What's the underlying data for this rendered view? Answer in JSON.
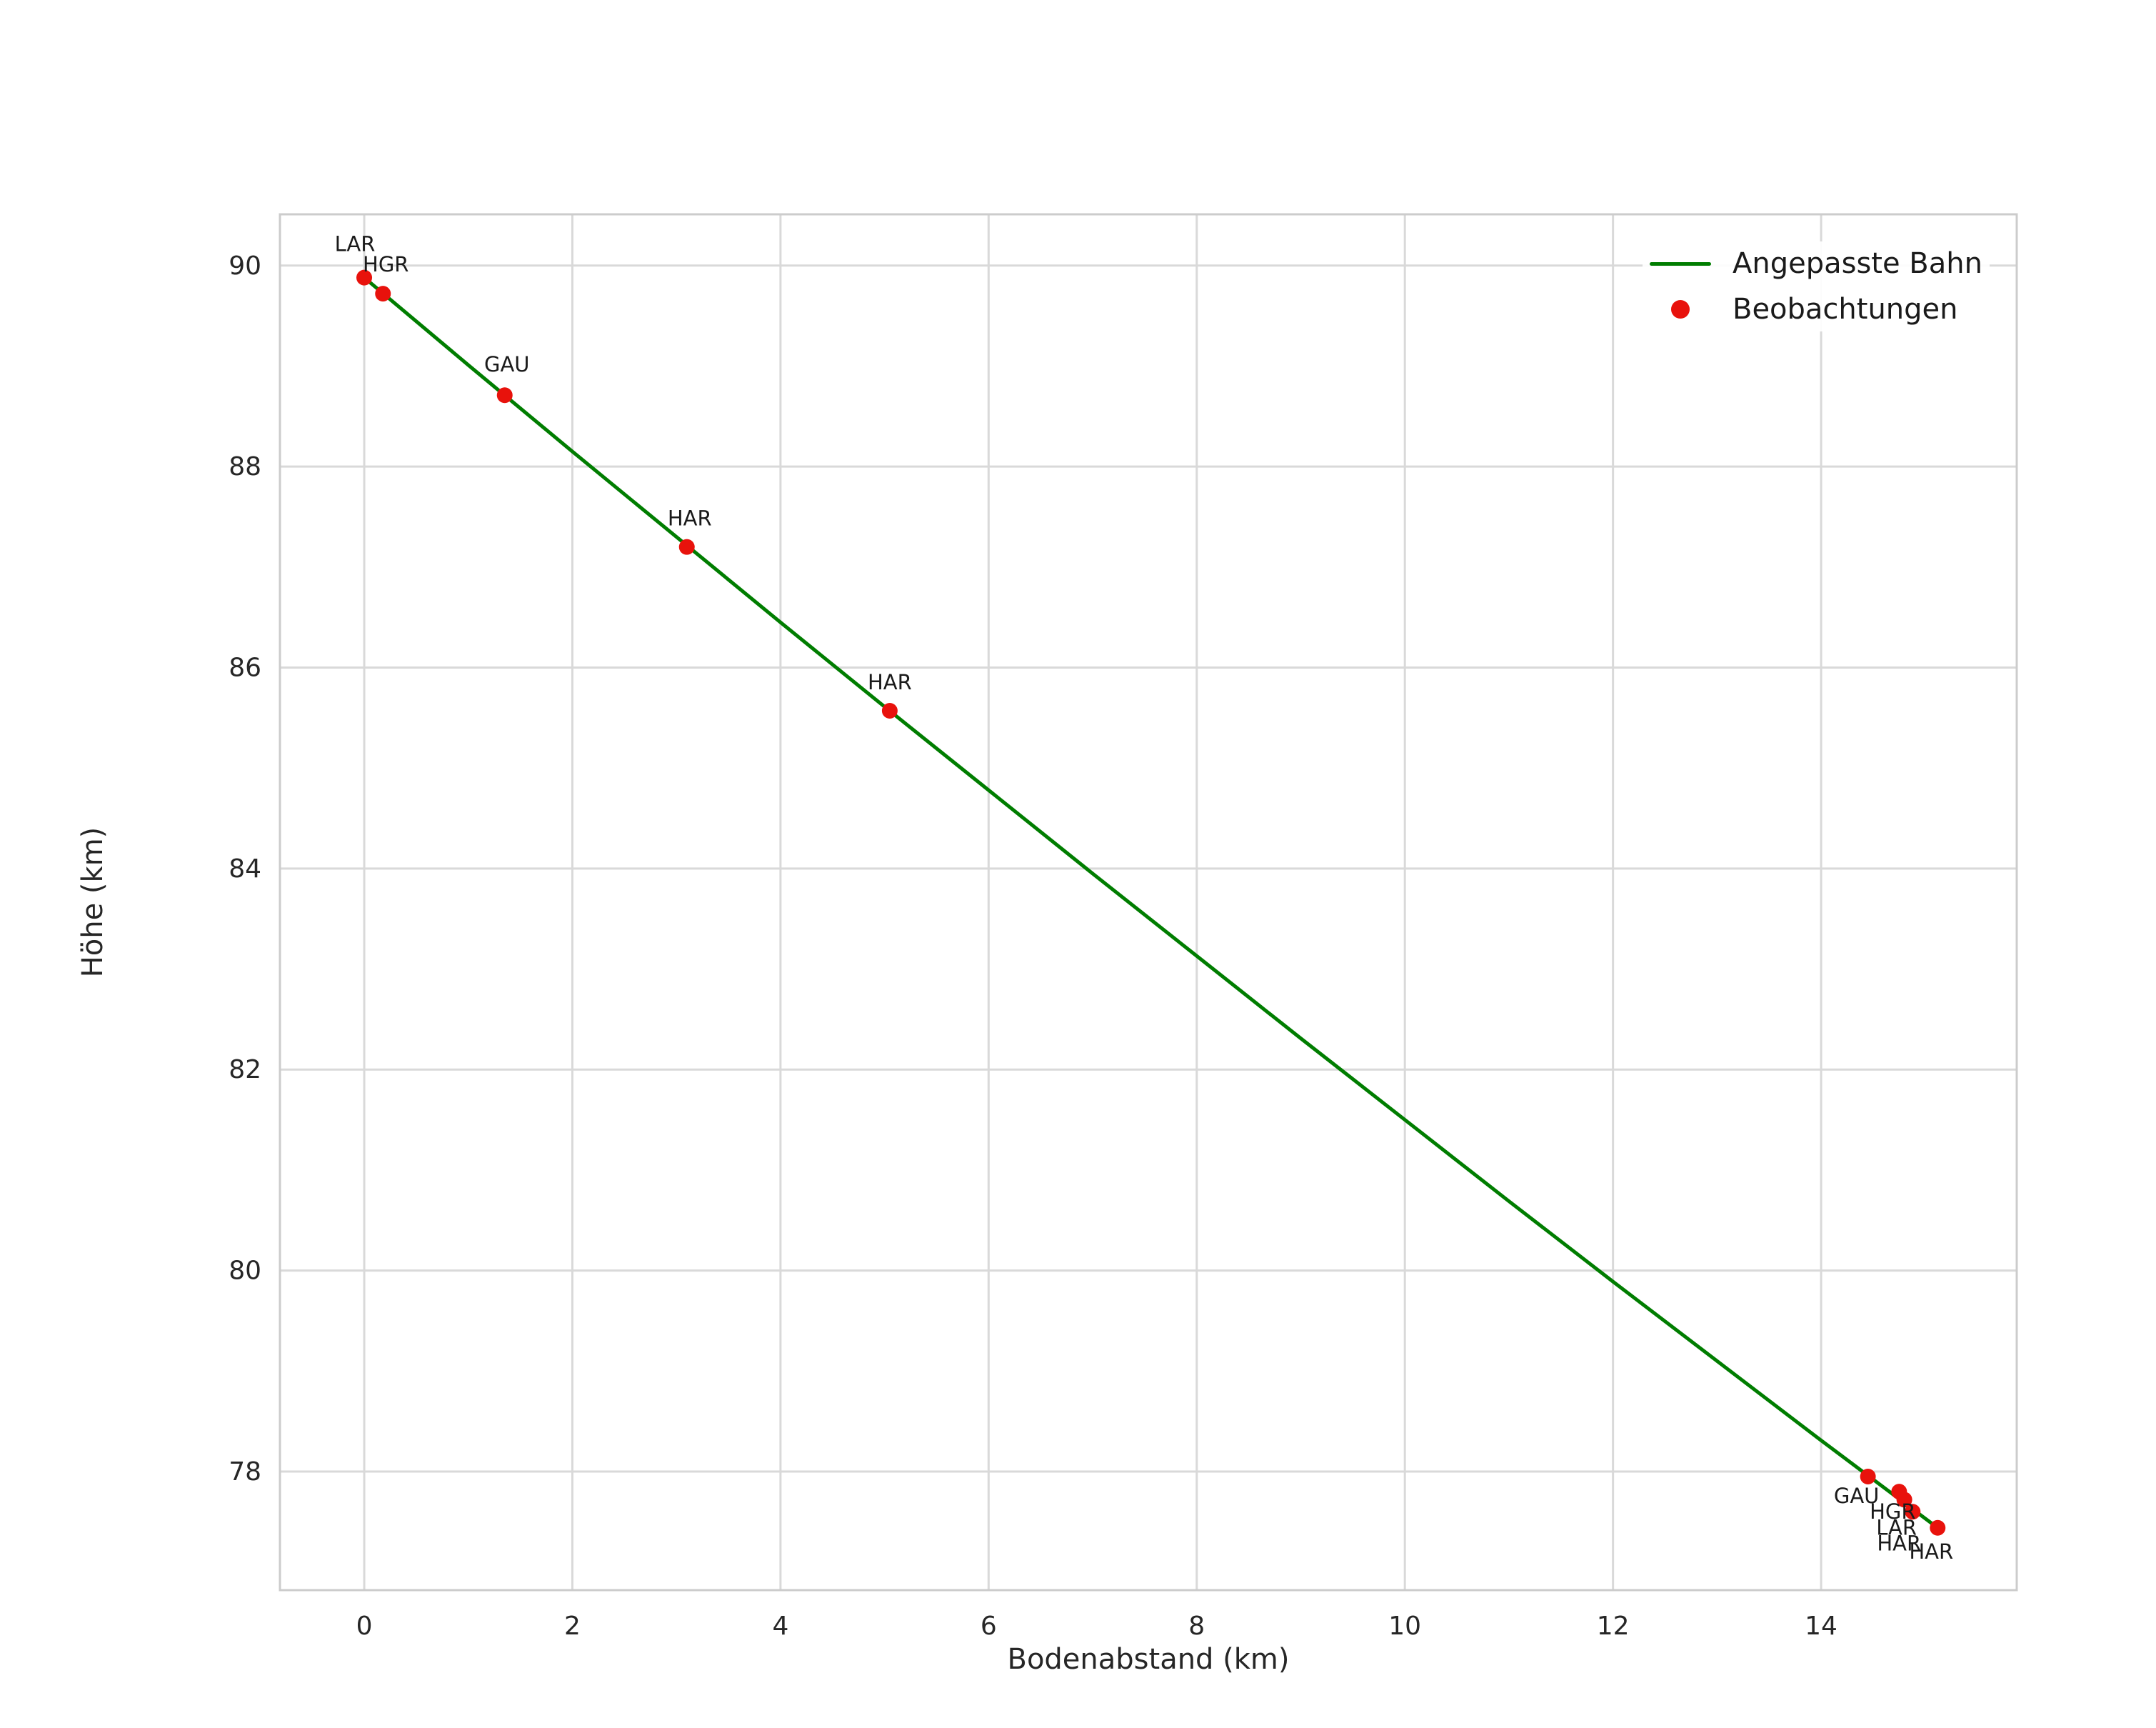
{
  "chart_data": {
    "type": "scatter",
    "title": "",
    "xlabel": "Bodenabstand (km)",
    "ylabel": "Höhe (km)",
    "xlim": [
      -0.81,
      15.88
    ],
    "ylim": [
      76.82,
      90.51
    ],
    "x_ticks": [
      0,
      2,
      4,
      6,
      8,
      10,
      12,
      14
    ],
    "y_ticks": [
      78,
      80,
      82,
      84,
      86,
      88,
      90
    ],
    "grid": true,
    "legend_position": "upper-right-inside",
    "colors": {
      "line": "#007d00",
      "points": "#e8120c",
      "grid": "#d9d9d9",
      "spine": "#cccccc",
      "tick_text": "#262626",
      "annotation_text": "#1a1a1a",
      "background": "#ffffff"
    },
    "series": [
      {
        "name": "Angepasste Bahn",
        "type": "line",
        "x": [
          0,
          1,
          2,
          3,
          4,
          5,
          6,
          7,
          8,
          9,
          10,
          11,
          12,
          13,
          14,
          15.12
        ],
        "y": [
          89.88,
          89.01,
          88.15,
          87.3,
          86.45,
          85.61,
          84.78,
          83.95,
          83.13,
          82.31,
          81.5,
          80.69,
          79.89,
          79.1,
          78.31,
          77.44
        ]
      },
      {
        "name": "Beobachtungen",
        "type": "scatter",
        "points": [
          {
            "x": 0.0,
            "y": 89.88,
            "label": "LAR",
            "label_dx": -13,
            "label_dy": -37
          },
          {
            "x": 0.18,
            "y": 89.72,
            "label": "HGR",
            "label_dx": 4,
            "label_dy": -31
          },
          {
            "x": 1.35,
            "y": 88.71,
            "label": "GAU",
            "label_dx": 3,
            "label_dy": -33
          },
          {
            "x": 3.1,
            "y": 87.2,
            "label": "HAR",
            "label_dx": 4,
            "label_dy": -30
          },
          {
            "x": 5.05,
            "y": 85.57,
            "label": "HAR",
            "label_dx": 0,
            "label_dy": -30
          },
          {
            "x": 14.45,
            "y": 77.95,
            "label": "GAU",
            "label_dx": -16,
            "label_dy": 37
          },
          {
            "x": 14.75,
            "y": 77.8,
            "label": "HGR",
            "label_dx": -9,
            "label_dy": 38
          },
          {
            "x": 14.8,
            "y": 77.72,
            "label": "LAR",
            "label_dx": -11,
            "label_dy": 49
          },
          {
            "x": 14.88,
            "y": 77.6,
            "label": "HAR",
            "label_dx": -19,
            "label_dy": 54
          },
          {
            "x": 15.12,
            "y": 77.44,
            "label": "HAR",
            "label_dx": -9,
            "label_dy": 43
          }
        ]
      }
    ]
  }
}
